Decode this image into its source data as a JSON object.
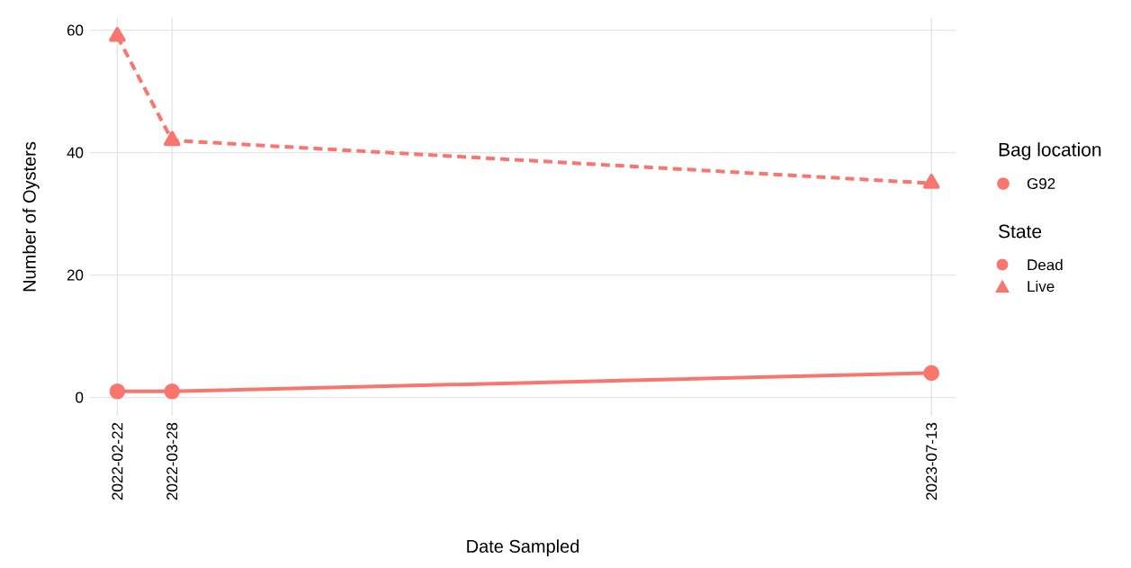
{
  "chart_data": {
    "type": "line",
    "xlabel": "Date Sampled",
    "ylabel": "Number of Oysters",
    "legend_title": "State",
    "annotations": [
      "Bag location",
      "G92"
    ],
    "x": [
      "2022-02-22",
      "2022-03-28",
      "2023-07-13"
    ],
    "series": [
      {
        "name": "Dead",
        "color": "#f8766d",
        "marker": "circle",
        "line_style": "solid",
        "values": [
          1,
          1,
          4
        ]
      },
      {
        "name": "Live",
        "color": "#f8766d",
        "marker": "triangle",
        "line_style": "dashed",
        "values": [
          59,
          42,
          35
        ]
      }
    ],
    "xlim": [
      "2022-02-05",
      "2023-07-28"
    ],
    "xticks": [
      "2022-02-22",
      "2022-03-28",
      "2023-07-13"
    ],
    "ylim": [
      -3,
      62
    ],
    "yticks": [
      0,
      20,
      40,
      60
    ],
    "grid": true,
    "legend": "right"
  }
}
